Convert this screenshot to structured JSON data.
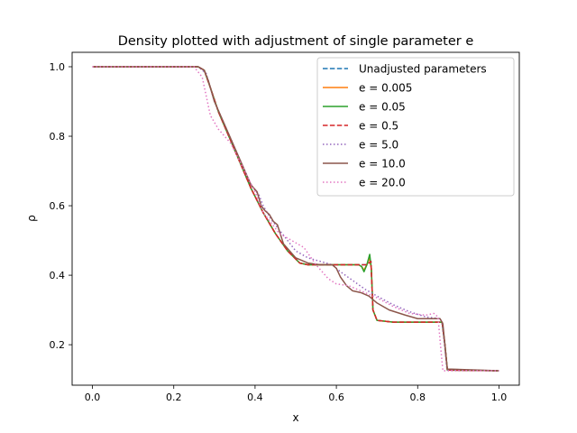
{
  "chart_data": {
    "type": "line",
    "title": "Density plotted with adjustment of single parameter e",
    "xlabel": "x",
    "ylabel": "ρ",
    "xlim": [
      -0.05,
      1.05
    ],
    "ylim": [
      0.0835,
      1.0415
    ],
    "xticks": [
      0.0,
      0.2,
      0.4,
      0.6,
      0.8,
      1.0
    ],
    "xtick_labels": [
      "0.0",
      "0.2",
      "0.4",
      "0.6",
      "0.8",
      "1.0"
    ],
    "yticks": [
      0.2,
      0.4,
      0.6,
      0.8,
      1.0
    ],
    "ytick_labels": [
      "0.2",
      "0.4",
      "0.6",
      "0.8",
      "1.0"
    ],
    "grid": false,
    "legend_position": "upper right",
    "series": [
      {
        "name": "Unadjusted parameters",
        "color": "#1f77b4",
        "style": "dashed",
        "x": [
          0.0,
          0.26,
          0.275,
          0.29,
          0.31,
          0.35,
          0.39,
          0.42,
          0.45,
          0.48,
          0.51,
          0.53,
          0.56,
          0.6,
          0.63,
          0.655,
          0.665,
          0.675,
          0.685,
          0.69,
          0.7,
          0.74,
          0.8,
          0.85,
          0.86,
          0.867,
          0.873,
          1.0
        ],
        "y": [
          1.0,
          1.0,
          0.99,
          0.94,
          0.87,
          0.76,
          0.65,
          0.58,
          0.52,
          0.47,
          0.435,
          0.43,
          0.43,
          0.43,
          0.43,
          0.43,
          0.43,
          0.43,
          0.44,
          0.3,
          0.27,
          0.265,
          0.265,
          0.265,
          0.265,
          0.2,
          0.127,
          0.125
        ]
      },
      {
        "name": "e = 0.005",
        "color": "#ff7f0e",
        "style": "solid",
        "x": [
          0.0,
          0.26,
          0.275,
          0.29,
          0.31,
          0.35,
          0.39,
          0.42,
          0.45,
          0.48,
          0.51,
          0.53,
          0.56,
          0.6,
          0.63,
          0.655,
          0.662,
          0.668,
          0.675,
          0.681,
          0.686,
          0.69,
          0.7,
          0.74,
          0.8,
          0.85,
          0.86,
          0.867,
          0.873,
          1.0
        ],
        "y": [
          1.0,
          1.0,
          0.99,
          0.94,
          0.87,
          0.76,
          0.65,
          0.58,
          0.52,
          0.47,
          0.435,
          0.43,
          0.43,
          0.43,
          0.43,
          0.43,
          0.425,
          0.415,
          0.43,
          0.45,
          0.42,
          0.3,
          0.27,
          0.265,
          0.265,
          0.265,
          0.265,
          0.2,
          0.127,
          0.125
        ]
      },
      {
        "name": "e = 0.05",
        "color": "#2ca02c",
        "style": "solid",
        "x": [
          0.0,
          0.26,
          0.275,
          0.29,
          0.31,
          0.35,
          0.39,
          0.42,
          0.45,
          0.48,
          0.51,
          0.53,
          0.56,
          0.6,
          0.63,
          0.655,
          0.662,
          0.668,
          0.675,
          0.682,
          0.686,
          0.69,
          0.7,
          0.74,
          0.8,
          0.85,
          0.86,
          0.867,
          0.873,
          1.0
        ],
        "y": [
          1.0,
          1.0,
          0.99,
          0.94,
          0.87,
          0.76,
          0.65,
          0.58,
          0.52,
          0.47,
          0.435,
          0.43,
          0.43,
          0.43,
          0.43,
          0.43,
          0.425,
          0.41,
          0.43,
          0.46,
          0.42,
          0.3,
          0.27,
          0.265,
          0.265,
          0.265,
          0.265,
          0.2,
          0.127,
          0.125
        ]
      },
      {
        "name": "e = 0.5",
        "color": "#d62728",
        "style": "dashed",
        "x": [
          0.0,
          0.26,
          0.275,
          0.29,
          0.31,
          0.35,
          0.39,
          0.42,
          0.45,
          0.48,
          0.51,
          0.53,
          0.56,
          0.6,
          0.63,
          0.655,
          0.665,
          0.675,
          0.685,
          0.69,
          0.7,
          0.74,
          0.8,
          0.85,
          0.86,
          0.867,
          0.873,
          1.0
        ],
        "y": [
          1.0,
          1.0,
          0.99,
          0.94,
          0.87,
          0.76,
          0.65,
          0.58,
          0.52,
          0.47,
          0.435,
          0.43,
          0.43,
          0.43,
          0.43,
          0.43,
          0.43,
          0.43,
          0.44,
          0.3,
          0.27,
          0.265,
          0.265,
          0.265,
          0.265,
          0.2,
          0.127,
          0.125
        ]
      },
      {
        "name": "e = 5.0",
        "color": "#9467bd",
        "style": "dotted",
        "x": [
          0.0,
          0.26,
          0.28,
          0.3,
          0.33,
          0.36,
          0.39,
          0.41,
          0.42,
          0.43,
          0.44,
          0.46,
          0.48,
          0.5,
          0.53,
          0.56,
          0.59,
          0.61,
          0.64,
          0.67,
          0.7,
          0.74,
          0.78,
          0.82,
          0.855,
          0.86,
          0.866,
          0.872,
          1.0
        ],
        "y": [
          1.0,
          1.0,
          0.98,
          0.9,
          0.82,
          0.74,
          0.66,
          0.63,
          0.6,
          0.58,
          0.56,
          0.53,
          0.5,
          0.47,
          0.45,
          0.44,
          0.43,
          0.41,
          0.385,
          0.36,
          0.34,
          0.315,
          0.295,
          0.28,
          0.275,
          0.265,
          0.2,
          0.128,
          0.125
        ]
      },
      {
        "name": "e = 10.0",
        "color": "#8c564b",
        "style": "solid",
        "x": [
          0.0,
          0.26,
          0.275,
          0.285,
          0.3,
          0.33,
          0.36,
          0.39,
          0.405,
          0.415,
          0.425,
          0.435,
          0.445,
          0.455,
          0.47,
          0.5,
          0.53,
          0.56,
          0.59,
          0.6,
          0.61,
          0.625,
          0.64,
          0.66,
          0.68,
          0.7,
          0.73,
          0.77,
          0.8,
          0.83,
          0.855,
          0.862,
          0.867,
          0.873,
          1.0
        ],
        "y": [
          1.0,
          1.0,
          0.99,
          0.96,
          0.9,
          0.82,
          0.74,
          0.66,
          0.64,
          0.6,
          0.585,
          0.575,
          0.555,
          0.545,
          0.49,
          0.45,
          0.435,
          0.43,
          0.43,
          0.42,
          0.395,
          0.37,
          0.355,
          0.35,
          0.34,
          0.32,
          0.3,
          0.285,
          0.275,
          0.275,
          0.275,
          0.26,
          0.2,
          0.13,
          0.125
        ]
      },
      {
        "name": "e = 20.0",
        "color": "#e377c2",
        "style": "dotted",
        "x": [
          0.0,
          0.25,
          0.27,
          0.29,
          0.31,
          0.34,
          0.37,
          0.4,
          0.42,
          0.44,
          0.46,
          0.49,
          0.52,
          0.55,
          0.58,
          0.6,
          0.63,
          0.66,
          0.7,
          0.74,
          0.78,
          0.82,
          0.84,
          0.85,
          0.856,
          0.862,
          1.0
        ],
        "y": [
          1.0,
          1.0,
          0.97,
          0.86,
          0.82,
          0.78,
          0.71,
          0.64,
          0.58,
          0.55,
          0.52,
          0.5,
          0.48,
          0.43,
          0.39,
          0.375,
          0.37,
          0.355,
          0.335,
          0.31,
          0.29,
          0.285,
          0.29,
          0.28,
          0.2,
          0.125,
          0.125
        ]
      }
    ]
  }
}
